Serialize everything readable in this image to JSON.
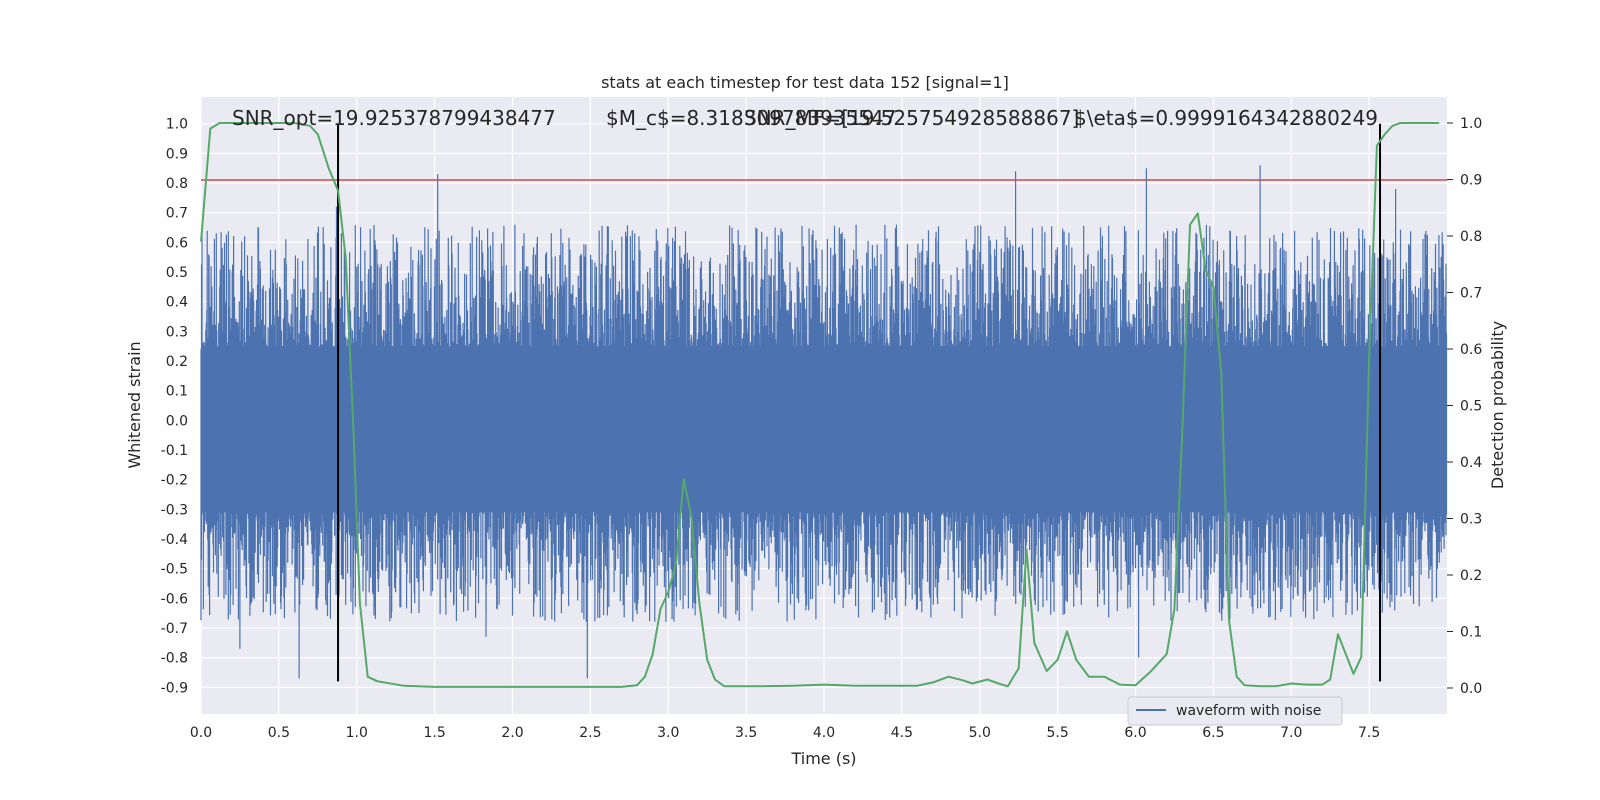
{
  "chart_data": {
    "type": "line",
    "title": "stats at each timestep for test data 152 [signal=1]",
    "xlabel": "Time (s)",
    "ylabel_left": "Whitened strain",
    "ylabel_right": "Detection probability",
    "xlim": [
      0.0,
      8.0
    ],
    "ylim_left": [
      -0.99,
      1.09
    ],
    "ylim_right": [
      -0.046,
      1.046
    ],
    "x_ticks": [
      "0.0",
      "0.5",
      "1.0",
      "1.5",
      "2.0",
      "2.5",
      "3.0",
      "3.5",
      "4.0",
      "4.5",
      "5.0",
      "5.5",
      "6.0",
      "6.5",
      "7.0",
      "7.5"
    ],
    "y_ticks_left": [
      "1.0",
      "0.9",
      "0.8",
      "0.7",
      "0.6",
      "0.5",
      "0.4",
      "0.3",
      "0.2",
      "0.1",
      "0.0",
      "-0.1",
      "-0.2",
      "-0.3",
      "-0.4",
      "-0.5",
      "-0.6",
      "-0.7",
      "-0.8",
      "-0.9"
    ],
    "y_ticks_right": [
      "1.0",
      "0.9",
      "0.8",
      "0.7",
      "0.6",
      "0.5",
      "0.4",
      "0.3",
      "0.2",
      "0.1",
      "0.0"
    ],
    "grid": true,
    "legend_position": "lower-right",
    "annotations": [
      "SNR_opt=19.925378799438477",
      "$M_c$=8.318309783935547",
      "SNR_MF=[19.525754928588867]",
      "$\\eta$=0.9999164342880249"
    ],
    "series": [
      {
        "name": "waveform with noise",
        "axis": "left",
        "note_type": "noise",
        "color": "#4c72b0",
        "spikes_up": [
          [
            0.87,
            0.72
          ],
          [
            1.52,
            0.83
          ],
          [
            5.23,
            0.84
          ],
          [
            6.07,
            0.85
          ],
          [
            6.8,
            0.86
          ],
          [
            7.67,
            0.78
          ],
          [
            0.07,
            0.45
          ]
        ],
        "spikes_down": [
          [
            0.63,
            -0.87
          ],
          [
            2.48,
            -0.87
          ],
          [
            0.25,
            -0.77
          ],
          [
            6.02,
            -0.8
          ],
          [
            7.57,
            -0.79
          ],
          [
            1.83,
            -0.73
          ]
        ]
      },
      {
        "name": "",
        "axis": "right",
        "color": "#55a868",
        "x": [
          0.0,
          0.06,
          0.12,
          0.2,
          0.3,
          0.4,
          0.5,
          0.6,
          0.7,
          0.75,
          0.82,
          0.88,
          0.93,
          0.98,
          1.02,
          1.07,
          1.13,
          1.3,
          1.5,
          1.7,
          1.9,
          2.1,
          2.3,
          2.5,
          2.7,
          2.8,
          2.85,
          2.9,
          2.95,
          3.0,
          3.05,
          3.1,
          3.15,
          3.2,
          3.25,
          3.3,
          3.36,
          3.45,
          3.6,
          3.8,
          4.0,
          4.2,
          4.4,
          4.6,
          4.7,
          4.8,
          4.9,
          4.95,
          5.05,
          5.12,
          5.18,
          5.25,
          5.3,
          5.35,
          5.43,
          5.5,
          5.56,
          5.62,
          5.7,
          5.8,
          5.9,
          6.0,
          6.1,
          6.2,
          6.25,
          6.3,
          6.35,
          6.4,
          6.45,
          6.5,
          6.55,
          6.6,
          6.65,
          6.7,
          6.8,
          6.9,
          7.0,
          7.1,
          7.2,
          7.25,
          7.3,
          7.35,
          7.4,
          7.45,
          7.5,
          7.55,
          7.6,
          7.65,
          7.7,
          7.8,
          7.9,
          7.95
        ],
        "y": [
          0.79,
          0.99,
          1.0,
          1.0,
          1.0,
          1.0,
          1.0,
          1.0,
          0.995,
          0.98,
          0.92,
          0.88,
          0.76,
          0.45,
          0.15,
          0.02,
          0.012,
          0.004,
          0.002,
          0.002,
          0.002,
          0.002,
          0.002,
          0.002,
          0.002,
          0.005,
          0.02,
          0.06,
          0.14,
          0.17,
          0.22,
          0.37,
          0.3,
          0.15,
          0.05,
          0.015,
          0.003,
          0.003,
          0.003,
          0.004,
          0.006,
          0.004,
          0.004,
          0.004,
          0.01,
          0.02,
          0.013,
          0.008,
          0.015,
          0.008,
          0.003,
          0.035,
          0.245,
          0.08,
          0.03,
          0.05,
          0.1,
          0.05,
          0.02,
          0.02,
          0.006,
          0.005,
          0.03,
          0.06,
          0.14,
          0.45,
          0.82,
          0.84,
          0.74,
          0.71,
          0.56,
          0.12,
          0.02,
          0.005,
          0.003,
          0.003,
          0.008,
          0.006,
          0.006,
          0.015,
          0.095,
          0.06,
          0.025,
          0.055,
          0.58,
          0.96,
          0.98,
          0.995,
          1.0,
          1.0,
          1.0,
          1.0
        ]
      }
    ],
    "horizontal_lines": [
      {
        "axis": "left",
        "y": 0.81,
        "color": "#c44e52"
      }
    ],
    "vertical_lines": [
      {
        "x": 0.88,
        "color": "#000000"
      },
      {
        "x": 7.57,
        "color": "#000000"
      }
    ]
  }
}
